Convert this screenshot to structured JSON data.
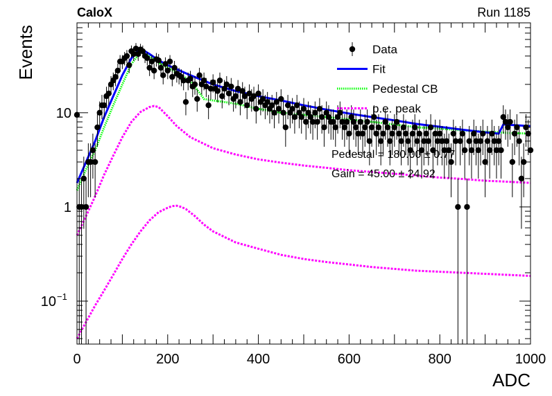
{
  "header": {
    "left_title": "CaloX",
    "right_title": "Run 1185"
  },
  "fit_text": {
    "pedestal": "Pedestal = 180.00 ± 0.77",
    "gain": "Gain = 45.00 ± 24.92"
  },
  "chart_data": {
    "type": "scatter",
    "xlabel": "ADC",
    "ylabel": "Events",
    "xlim": [
      0,
      1000
    ],
    "ylim": [
      0.035,
      90
    ],
    "yscale": "log",
    "grid": false,
    "legend_position": "top-right",
    "x_ticks": [
      {
        "value": 0,
        "label": "0"
      },
      {
        "value": 200,
        "label": "200"
      },
      {
        "value": 400,
        "label": "400"
      },
      {
        "value": 600,
        "label": "600"
      },
      {
        "value": 800,
        "label": "800"
      },
      {
        "value": 1000,
        "label": "1000"
      }
    ],
    "y_ticks": [
      {
        "value": 0.1,
        "base": "10",
        "exp": "−1"
      },
      {
        "value": 1,
        "base": "1",
        "exp": ""
      },
      {
        "value": 10,
        "base": "10",
        "exp": ""
      }
    ],
    "legend": [
      {
        "label": "Data",
        "color": "#000000",
        "style": "marker"
      },
      {
        "label": "Fit",
        "color": "#0000ff",
        "style": "solid"
      },
      {
        "label": "Pedestal CB",
        "color": "#00ff00",
        "style": "dotted"
      },
      {
        "label": "p.e. peak",
        "color": "#ff00ff",
        "style": "dashed"
      }
    ],
    "series": [
      {
        "name": "Data",
        "kind": "points",
        "x": [
          0,
          5,
          10,
          15,
          20,
          25,
          30,
          35,
          40,
          45,
          50,
          55,
          60,
          65,
          70,
          75,
          80,
          85,
          90,
          95,
          100,
          105,
          110,
          115,
          120,
          125,
          130,
          135,
          140,
          145,
          150,
          155,
          160,
          165,
          170,
          175,
          180,
          185,
          190,
          195,
          200,
          205,
          210,
          215,
          220,
          225,
          230,
          235,
          240,
          245,
          250,
          255,
          260,
          265,
          270,
          275,
          280,
          285,
          290,
          295,
          300,
          305,
          310,
          315,
          320,
          325,
          330,
          335,
          340,
          345,
          350,
          355,
          360,
          365,
          370,
          375,
          380,
          385,
          390,
          395,
          400,
          405,
          410,
          415,
          420,
          425,
          430,
          435,
          440,
          445,
          450,
          455,
          460,
          465,
          470,
          475,
          480,
          485,
          490,
          495,
          500,
          505,
          510,
          515,
          520,
          525,
          530,
          535,
          540,
          545,
          550,
          555,
          560,
          565,
          570,
          575,
          580,
          585,
          590,
          595,
          600,
          605,
          610,
          615,
          620,
          625,
          630,
          635,
          640,
          645,
          650,
          655,
          660,
          665,
          670,
          675,
          680,
          685,
          690,
          695,
          700,
          705,
          710,
          715,
          720,
          725,
          730,
          735,
          740,
          745,
          750,
          755,
          760,
          765,
          770,
          775,
          780,
          785,
          790,
          795,
          800,
          805,
          810,
          815,
          820,
          825,
          830,
          835,
          840,
          845,
          850,
          855,
          860,
          865,
          870,
          875,
          880,
          885,
          890,
          895,
          900,
          905,
          910,
          915,
          920,
          925,
          930,
          935,
          940,
          945,
          950,
          955,
          960,
          965,
          970,
          975,
          980,
          985,
          990,
          995,
          1000
        ],
        "y": [
          9.5,
          1,
          1,
          2,
          1,
          3,
          3,
          4,
          3,
          7,
          10,
          12,
          12,
          15,
          16,
          20,
          22,
          24,
          28,
          35,
          35,
          38,
          40,
          32,
          45,
          42,
          48,
          42,
          47,
          45,
          40,
          38,
          30,
          35,
          28,
          37,
          36,
          30,
          25,
          33,
          28,
          35,
          24,
          30,
          26,
          25,
          24,
          22,
          13,
          22,
          23,
          19,
          20,
          14,
          25,
          20,
          22,
          19,
          12,
          18,
          21,
          18,
          17,
          22,
          15,
          18,
          20,
          16,
          19,
          14,
          15,
          18,
          13,
          17,
          15,
          12,
          16,
          14,
          15,
          11,
          16,
          13,
          14,
          12,
          13,
          11,
          12,
          10,
          13,
          11,
          14,
          10,
          7,
          12,
          10,
          11,
          9,
          12,
          10,
          9,
          11,
          8,
          10,
          9,
          8,
          10,
          8,
          11,
          9,
          7,
          10,
          9,
          8,
          8,
          7,
          9,
          10,
          8,
          7,
          8,
          6,
          9,
          8,
          7,
          6,
          8,
          6,
          7,
          8,
          5,
          7,
          9,
          6,
          7,
          5,
          6,
          8,
          7,
          5,
          6,
          7,
          8,
          6,
          5,
          7,
          6,
          5,
          4,
          6,
          7,
          5,
          6,
          4,
          5,
          6,
          5,
          7,
          4,
          6,
          5,
          6,
          5,
          4,
          5,
          4,
          3,
          6,
          5,
          1,
          5,
          6,
          4,
          1,
          5,
          4,
          6,
          5,
          4,
          5,
          6,
          3,
          5,
          4,
          6,
          5,
          4,
          5,
          4,
          9,
          8,
          7,
          8,
          3,
          6,
          7,
          5,
          2,
          3,
          7,
          6,
          4
        ]
      },
      {
        "name": "Fit",
        "kind": "line",
        "x": [
          0,
          20,
          40,
          60,
          80,
          100,
          120,
          140,
          160,
          180,
          200,
          250,
          300,
          350,
          400,
          450,
          500,
          550,
          600,
          650,
          700,
          750,
          800,
          850,
          900,
          930,
          940,
          960,
          980,
          1000
        ],
        "y": [
          1.8,
          3.0,
          5.0,
          9,
          15,
          25,
          38,
          48,
          42,
          36,
          32,
          25,
          20,
          17,
          15,
          13.5,
          12,
          10.8,
          9.8,
          9.0,
          8.3,
          7.6,
          7.1,
          6.6,
          6.2,
          6.0,
          7.5,
          7.4,
          7.3,
          7.2
        ]
      },
      {
        "name": "Pedestal CB",
        "kind": "line",
        "x": [
          0,
          20,
          40,
          60,
          80,
          100,
          120,
          140,
          160,
          180,
          200,
          250,
          280,
          300,
          350,
          400,
          450,
          500,
          550,
          600,
          650,
          700,
          750,
          800,
          850,
          900,
          950,
          1000
        ],
        "y": [
          1.5,
          2.5,
          4,
          7,
          12,
          20,
          33,
          44,
          40,
          34,
          30,
          22,
          14,
          13.5,
          12.5,
          11,
          10,
          9.5,
          9,
          8.5,
          8,
          7.5,
          7,
          6.8,
          6.5,
          6.3,
          6.1,
          6
        ]
      },
      {
        "name": "p.e. peak (upper)",
        "kind": "line",
        "x": [
          0,
          20,
          40,
          60,
          80,
          100,
          120,
          140,
          160,
          170,
          180,
          200,
          220,
          250,
          300,
          350,
          400,
          450,
          500,
          550,
          600,
          650,
          700,
          750,
          800,
          850,
          900,
          950,
          1000
        ],
        "y": [
          0.5,
          0.8,
          1.3,
          2.2,
          3.5,
          5.5,
          8,
          10.2,
          11.5,
          11.8,
          11.5,
          9.2,
          7.2,
          5.5,
          4.2,
          3.6,
          3.2,
          2.95,
          2.75,
          2.6,
          2.45,
          2.35,
          2.25,
          2.15,
          2.05,
          1.98,
          1.9,
          1.85,
          1.8
        ]
      },
      {
        "name": "p.e. peak (lower)",
        "kind": "line",
        "x": [
          0,
          20,
          40,
          60,
          80,
          100,
          120,
          140,
          160,
          180,
          200,
          210,
          220,
          230,
          240,
          260,
          280,
          300,
          350,
          400,
          450,
          500,
          550,
          600,
          650,
          700,
          750,
          800,
          850,
          900,
          950,
          1000
        ],
        "y": [
          0.04,
          0.06,
          0.09,
          0.13,
          0.19,
          0.28,
          0.4,
          0.55,
          0.72,
          0.88,
          0.98,
          1.02,
          1.03,
          1.0,
          0.95,
          0.8,
          0.65,
          0.55,
          0.42,
          0.36,
          0.31,
          0.28,
          0.26,
          0.245,
          0.23,
          0.22,
          0.21,
          0.205,
          0.2,
          0.195,
          0.19,
          0.185
        ]
      }
    ]
  }
}
